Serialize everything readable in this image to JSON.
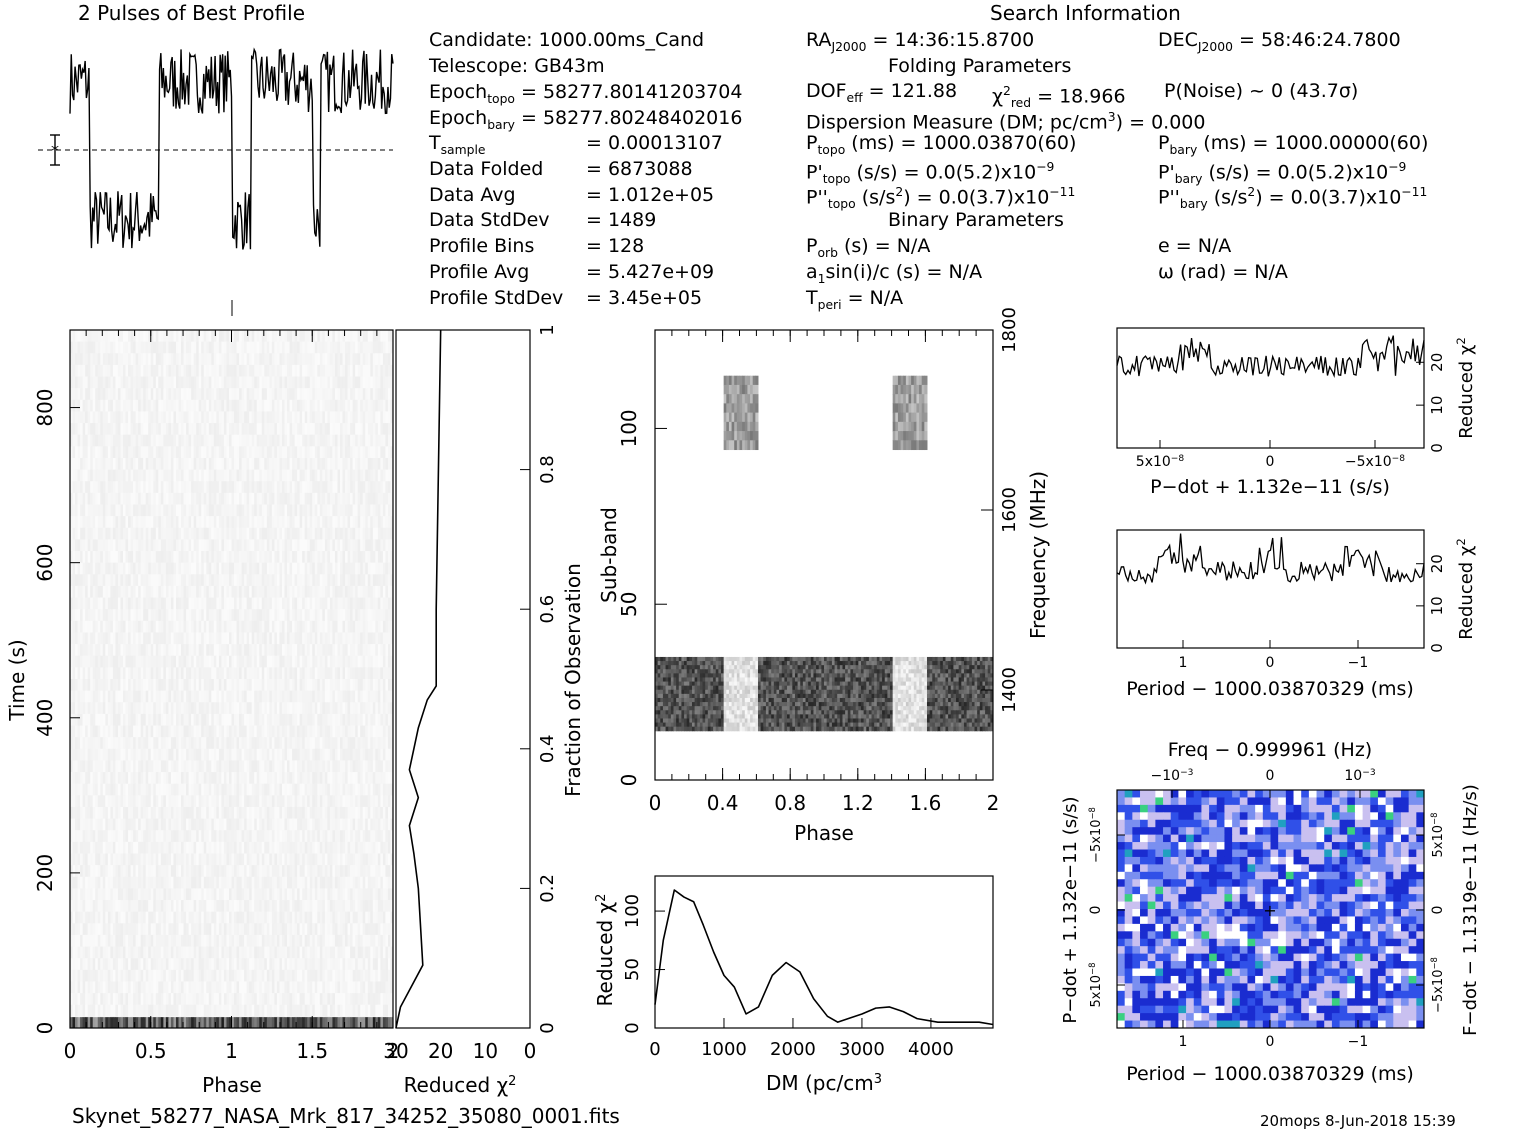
{
  "header": {
    "profile_title": "2 Pulses of Best Profile",
    "search_title": "Search Information"
  },
  "info": {
    "candidate": "Candidate:  1000.00ms_Cand",
    "telescope": "Telescope:  GB43m",
    "epoch_topo_label": "Epoch",
    "epoch_topo_sub": "topo",
    "epoch_topo_value": " = 58277.80141203704",
    "epoch_bary_label": "Epoch",
    "epoch_bary_sub": "bary",
    "epoch_bary_value": " = 58277.80248402016",
    "rows": [
      {
        "label": "T",
        "sub": "sample",
        "value": "=   0.00013107"
      },
      {
        "label": "Data Folded",
        "sub": "",
        "value": "=   6873088"
      },
      {
        "label": "Data Avg",
        "sub": "",
        "value": "=   1.012e+05"
      },
      {
        "label": "Data StdDev",
        "sub": "",
        "value": "=   1489"
      },
      {
        "label": "Profile Bins",
        "sub": "",
        "value": "=   128"
      },
      {
        "label": "Profile Avg",
        "sub": "",
        "value": "=   5.427e+09"
      },
      {
        "label": "Profile StdDev",
        "sub": "",
        "value": "=   3.45e+05"
      }
    ]
  },
  "search": {
    "ra": "RA",
    "ra_sub": "J2000",
    "ra_value": " = 14:36:15.8700",
    "dec": "DEC",
    "dec_sub": "J2000",
    "dec_value": " = 58:46:24.7800",
    "folding_title": "Folding Parameters",
    "dof": "DOF",
    "dof_sub": "eff",
    "dof_value": " = 121.88",
    "chi": "χ",
    "chi_sup": "2",
    "chi_sub": "red",
    "chi_value": " = 18.966",
    "pnoise": "P(Noise) ~ 0    (43.7σ)",
    "dm": "Dispersion Measure (DM; pc/cm",
    "dm_sup": "3",
    "dm_value": ") = 0.000",
    "ptopo": "P",
    "ptopo_sub": "topo",
    "ptopo_value": " (ms) =  1000.03870(60)",
    "pbary": "P",
    "pbary_sub": "bary",
    "pbary_value": " (ms) =  1000.00000(60)",
    "pdtopo": "P'",
    "pdtopo_sub": "topo",
    "pdtopo_value": " (s/s) = 0.0(5.2)x10",
    "pdtopo_exp": "−9",
    "pdbary": "P'",
    "pdbary_sub": "bary",
    "pdbary_value": " (s/s) = 0.0(5.2)x10",
    "pdbary_exp": "−9",
    "pddtopo": "P''",
    "pddtopo_sub": "topo",
    "pddtopo_value": " (s/s",
    "pddtopo_sup": "2",
    "pddtopo_value2": ") = 0.0(3.7)x10",
    "pddtopo_exp": "−11",
    "pddbary": "P''",
    "pddbary_sub": "bary",
    "pddbary_value": " (s/s",
    "pddbary_sup": "2",
    "pddbary_value2": ") = 0.0(3.7)x10",
    "pddbary_exp": "−11",
    "binary_title": "Binary Parameters",
    "porb": "P",
    "porb_sub": "orb",
    "porb_value": " (s) = N/A",
    "e_value": "e = N/A",
    "a1": "a",
    "a1_sub": "1",
    "a1_value": "sin(i)/c (s) = N/A",
    "omega_value": "ω (rad) = N/A",
    "tperi": "T",
    "tperi_sub": "peri",
    "tperi_value": " = N/A"
  },
  "footer": {
    "filename": "Skynet_58277_NASA_Mrk_817_34252_35080_0001.fits",
    "stamp": "20mops  8-Jun-2018 15:39"
  },
  "chart_data": [
    {
      "id": "profile",
      "type": "line",
      "title": "2 Pulses of Best Profile",
      "x_range": [
        0,
        2
      ],
      "phase_on_pulse": [
        [
          0.0,
          0.12
        ],
        [
          0.55,
          1.0
        ],
        [
          1.12,
          1.5
        ],
        [
          1.55,
          2.0
        ]
      ],
      "level_low": 0.22,
      "level_high": 0.82,
      "noise": 0.14,
      "note_level": "mean marker"
    },
    {
      "id": "time_phase",
      "type": "heatmap",
      "xlabel": "Phase",
      "ylabel": "Time (s)",
      "xlim": [
        0,
        2
      ],
      "ylim": [
        0,
        900
      ],
      "xticks": [
        "0",
        "0.5",
        "1",
        "1.5",
        "2"
      ],
      "yticks": [
        "0",
        "200",
        "400",
        "600",
        "800"
      ],
      "dark_band_time_s": [
        0,
        14
      ]
    },
    {
      "id": "chi_time",
      "type": "line",
      "xlabel": "Reduced χ",
      "xlabel_sup": "2",
      "ylabel": "Fraction of Observation",
      "xlim": [
        30,
        0
      ],
      "ylim": [
        0,
        1
      ],
      "xticks": [
        "30",
        "20",
        "10",
        "0"
      ],
      "yticks": [
        "0",
        "0.2",
        "0.4",
        "0.6",
        "0.8",
        "1"
      ],
      "x": [
        30,
        29,
        24,
        25,
        26,
        27,
        25,
        27,
        26,
        25,
        23,
        22,
        21,
        21,
        20
      ],
      "y": [
        0.0,
        0.03,
        0.09,
        0.2,
        0.25,
        0.29,
        0.33,
        0.37,
        0.4,
        0.43,
        0.47,
        0.48,
        0.49,
        0.6,
        1.0
      ]
    },
    {
      "id": "subband_phase",
      "type": "heatmap",
      "xlabel": "Phase",
      "ylabel": "Sub-band",
      "ylabel_right": "Frequency (MHz)",
      "xlim": [
        0,
        2
      ],
      "ylim": [
        0,
        128
      ],
      "xticks": [
        "0",
        "0.4",
        "0.8",
        "1.2",
        "1.6",
        "2"
      ],
      "yticks": [
        "0",
        "50",
        "100"
      ],
      "right_ticks": [
        "1400",
        "1600",
        "1800"
      ],
      "signal_bands": [
        [
          14,
          35
        ],
        [
          94,
          115
        ]
      ]
    },
    {
      "id": "dm_chi",
      "type": "line",
      "xlabel": "DM (pc/cm",
      "xlabel_sup": "3",
      "ylabel": "Reduced χ",
      "ylabel_sup": "2",
      "xlim": [
        0,
        4900
      ],
      "ylim": [
        0,
        130
      ],
      "xticks": [
        "0",
        "1000",
        "2000",
        "3000",
        "4000"
      ],
      "yticks": [
        "0",
        "50",
        "100"
      ],
      "x": [
        0,
        120,
        280,
        420,
        560,
        700,
        850,
        1000,
        1150,
        1320,
        1500,
        1700,
        1900,
        2100,
        2300,
        2500,
        2650,
        2800,
        3000,
        3200,
        3400,
        3600,
        3800,
        4100,
        4400,
        4700,
        4900
      ],
      "y": [
        20,
        75,
        118,
        112,
        108,
        88,
        65,
        45,
        35,
        12,
        18,
        45,
        56,
        48,
        25,
        10,
        5,
        8,
        12,
        17,
        18,
        14,
        8,
        5,
        5,
        5,
        3
      ]
    },
    {
      "id": "pdot_chi",
      "type": "line",
      "xlabel": "P−dot + 1.132e−11 (s/s)",
      "ylabel": "Reduced χ",
      "ylabel_sup": "2",
      "xticks": [
        "5x10",
        "0",
        "−5x10"
      ],
      "xtick_exp": "−8",
      "yticks": [
        "0",
        "10",
        "20"
      ],
      "ylim": [
        0,
        28
      ],
      "level": 19
    },
    {
      "id": "period_chi",
      "type": "line",
      "xlabel": "Period − 1000.03870329 (ms)",
      "ylabel": "Reduced χ",
      "ylabel_sup": "2",
      "xticks": [
        "1",
        "0",
        "−1"
      ],
      "yticks": [
        "0",
        "10",
        "20"
      ],
      "ylim": [
        0,
        28
      ],
      "level": 18
    },
    {
      "id": "ppdot",
      "type": "heatmap",
      "title": "Freq − 0.999961 (Hz)",
      "xlabel": "Period − 1000.03870329 (ms)",
      "ylabel": "P−dot + 1.132e−11 (s/s)",
      "ylabel_right": "F−dot − 1.1319e−11 (Hz/s)",
      "xticks": [
        "1",
        "0",
        "−1"
      ],
      "top_ticks": [
        "−10",
        "0",
        "10"
      ],
      "top_exp": "−3",
      "yticks": [
        "−5x10",
        "0",
        "5x10"
      ],
      "ytick_exp": "−8",
      "right_ticks": [
        "5x10",
        "0",
        "−5x10"
      ],
      "right_exp": "−8",
      "colors": [
        "#1a2cd0",
        "#3050e8",
        "#7a8ff0",
        "#c9c0f0",
        "#ffffff",
        "#3ad080",
        "#20a0c0"
      ]
    }
  ]
}
